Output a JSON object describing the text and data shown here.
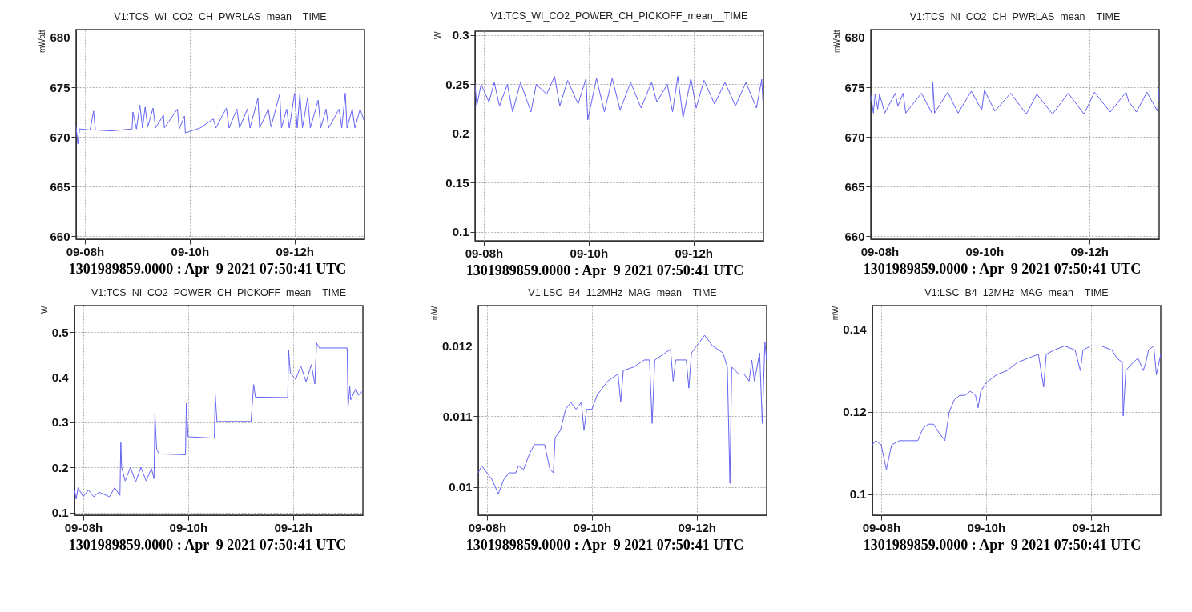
{
  "chart_data": [
    {
      "type": "line",
      "title": "V1:TCS_WI_CO2_CH_PWRLAS_mean__TIME",
      "ylabel": "mWatt",
      "xlim": [
        "2021-04-09T07:50",
        "2021-04-09T13:20"
      ],
      "xticks": [
        {
          "value": "2021-04-09T08:00",
          "label": "09-08h"
        },
        {
          "value": "2021-04-09T10:00",
          "label": "09-10h"
        },
        {
          "value": "2021-04-09T12:00",
          "label": "09-12h"
        }
      ],
      "ylim": [
        659.7,
        680.8
      ],
      "yticks": [
        660,
        665,
        670,
        675,
        680
      ],
      "grid": true,
      "annotations": [
        "1301989859.0000 : Apr  9 2021 07:50:41 UTC"
      ],
      "x": [
        "2021-04-09T07:50",
        "2021-04-09T07:52",
        "2021-04-09T07:54",
        "2021-04-09T08:06",
        "2021-04-09T08:10",
        "2021-04-09T08:12",
        "2021-04-09T08:30",
        "2021-04-09T08:54",
        "2021-04-09T08:55",
        "2021-04-09T08:59",
        "2021-04-09T09:03",
        "2021-04-09T09:06",
        "2021-04-09T09:09",
        "2021-04-09T09:12",
        "2021-04-09T09:18",
        "2021-04-09T09:21",
        "2021-04-09T09:30",
        "2021-04-09T09:31",
        "2021-04-09T09:46",
        "2021-04-09T09:48",
        "2021-04-09T09:54",
        "2021-04-09T09:55",
        "2021-04-09T10:12",
        "2021-04-09T10:27",
        "2021-04-09T10:30",
        "2021-04-09T10:42",
        "2021-04-09T10:45",
        "2021-04-09T10:54",
        "2021-04-09T10:57",
        "2021-04-09T11:06",
        "2021-04-09T11:09",
        "2021-04-09T11:18",
        "2021-04-09T11:20",
        "2021-04-09T11:30",
        "2021-04-09T11:33",
        "2021-04-09T11:43",
        "2021-04-09T11:45",
        "2021-04-09T11:51",
        "2021-04-09T11:54",
        "2021-04-09T12:00",
        "2021-04-09T12:03",
        "2021-04-09T12:06",
        "2021-04-09T12:09",
        "2021-04-09T12:15",
        "2021-04-09T12:18",
        "2021-04-09T12:27",
        "2021-04-09T12:30",
        "2021-04-09T12:36",
        "2021-04-09T12:39",
        "2021-04-09T12:51",
        "2021-04-09T12:54",
        "2021-04-09T12:58",
        "2021-04-09T13:00",
        "2021-04-09T13:06",
        "2021-04-09T13:09",
        "2021-04-09T13:15",
        "2021-04-09T13:20"
      ],
      "series": [
        {
          "color": "#6363f5",
          "values": [
            671,
            669.3,
            670.8,
            670.7,
            672.6,
            670.7,
            670.6,
            670.8,
            672.5,
            670.8,
            673.2,
            670.9,
            673,
            671,
            672.9,
            670.9,
            672.2,
            670.9,
            672.8,
            670.8,
            672.1,
            670.4,
            670.9,
            671.8,
            670.9,
            672.9,
            670.9,
            672.8,
            670.9,
            672.8,
            670.9,
            673.9,
            670.9,
            672.8,
            671,
            674.3,
            670.9,
            672.8,
            670.9,
            674.4,
            670.9,
            674.3,
            670.9,
            674,
            670.9,
            673.7,
            670.9,
            672.8,
            670.9,
            672.8,
            670.9,
            674.4,
            670.9,
            672.8,
            670.9,
            672.8,
            671.5
          ]
        }
      ]
    },
    {
      "type": "line",
      "title": "V1:TCS_WI_CO2_POWER_CH_PICKOFF_mean__TIME",
      "ylabel": "W",
      "xlim": [
        "2021-04-09T07:50",
        "2021-04-09T13:20"
      ],
      "xticks": [
        {
          "value": "2021-04-09T08:00",
          "label": "09-08h"
        },
        {
          "value": "2021-04-09T10:00",
          "label": "09-10h"
        },
        {
          "value": "2021-04-09T12:00",
          "label": "09-12h"
        }
      ],
      "ylim": [
        0.091,
        0.304
      ],
      "yticks": [
        0.1,
        0.15,
        0.2,
        0.25,
        0.3
      ],
      "grid": true,
      "annotations": [
        "1301989859.0000 : Apr  9 2021 07:50:41 UTC"
      ],
      "x": [
        "2021-04-09T07:50",
        "2021-04-09T07:52",
        "2021-04-09T07:57",
        "2021-04-09T08:06",
        "2021-04-09T08:12",
        "2021-04-09T08:18",
        "2021-04-09T08:27",
        "2021-04-09T08:33",
        "2021-04-09T08:42",
        "2021-04-09T08:54",
        "2021-04-09T09:00",
        "2021-04-09T09:12",
        "2021-04-09T09:21",
        "2021-04-09T09:27",
        "2021-04-09T09:36",
        "2021-04-09T09:48",
        "2021-04-09T09:57",
        "2021-04-09T09:59",
        "2021-04-09T10:09",
        "2021-04-09T10:18",
        "2021-04-09T10:27",
        "2021-04-09T10:36",
        "2021-04-09T10:48",
        "2021-04-09T11:00",
        "2021-04-09T11:12",
        "2021-04-09T11:18",
        "2021-04-09T11:30",
        "2021-04-09T11:36",
        "2021-04-09T11:42",
        "2021-04-09T11:48",
        "2021-04-09T11:57",
        "2021-04-09T12:03",
        "2021-04-09T12:12",
        "2021-04-09T12:24",
        "2021-04-09T12:36",
        "2021-04-09T12:48",
        "2021-04-09T13:00",
        "2021-04-09T13:12",
        "2021-04-09T13:18",
        "2021-04-09T13:20"
      ],
      "series": [
        {
          "color": "#6363f5",
          "values": [
            0.25,
            0.228,
            0.25,
            0.232,
            0.252,
            0.228,
            0.25,
            0.222,
            0.252,
            0.222,
            0.25,
            0.24,
            0.258,
            0.228,
            0.254,
            0.23,
            0.256,
            0.214,
            0.256,
            0.222,
            0.256,
            0.224,
            0.252,
            0.226,
            0.252,
            0.232,
            0.25,
            0.222,
            0.258,
            0.216,
            0.256,
            0.226,
            0.254,
            0.23,
            0.252,
            0.228,
            0.252,
            0.226,
            0.255,
            0.224
          ]
        }
      ]
    },
    {
      "type": "line",
      "title": "V1:TCS_NI_CO2_CH_PWRLAS_mean__TIME",
      "ylabel": "mWatt",
      "xlim": [
        "2021-04-09T07:50",
        "2021-04-09T13:20"
      ],
      "xticks": [
        {
          "value": "2021-04-09T08:00",
          "label": "09-08h"
        },
        {
          "value": "2021-04-09T10:00",
          "label": "09-10h"
        },
        {
          "value": "2021-04-09T12:00",
          "label": "09-12h"
        }
      ],
      "ylim": [
        659.7,
        680.8
      ],
      "yticks": [
        660,
        665,
        670,
        675,
        680
      ],
      "grid": true,
      "annotations": [
        "1301989859.0000 : Apr  9 2021 07:50:41 UTC"
      ],
      "x": [
        "2021-04-09T07:50",
        "2021-04-09T07:53",
        "2021-04-09T07:55",
        "2021-04-09T07:58",
        "2021-04-09T08:00",
        "2021-04-09T08:06",
        "2021-04-09T08:18",
        "2021-04-09T08:21",
        "2021-04-09T08:27",
        "2021-04-09T08:30",
        "2021-04-09T08:48",
        "2021-04-09T09:00",
        "2021-04-09T09:01",
        "2021-04-09T09:03",
        "2021-04-09T09:18",
        "2021-04-09T09:30",
        "2021-04-09T09:45",
        "2021-04-09T09:57",
        "2021-04-09T10:00",
        "2021-04-09T10:12",
        "2021-04-09T10:30",
        "2021-04-09T10:36",
        "2021-04-09T10:48",
        "2021-04-09T11:00",
        "2021-04-09T11:18",
        "2021-04-09T11:36",
        "2021-04-09T11:54",
        "2021-04-09T12:06",
        "2021-04-09T12:24",
        "2021-04-09T12:42",
        "2021-04-09T12:45",
        "2021-04-09T12:54",
        "2021-04-09T13:06",
        "2021-04-09T13:18",
        "2021-04-09T13:20"
      ],
      "series": [
        {
          "color": "#6363f5",
          "values": [
            674.2,
            672.4,
            674.3,
            672.8,
            674.3,
            672.4,
            674.4,
            673.1,
            674.4,
            672.4,
            674.4,
            672.4,
            675.5,
            672.4,
            674.5,
            672.4,
            674.6,
            672.7,
            674.7,
            672.6,
            674.4,
            673.7,
            672.3,
            674.3,
            672.3,
            674.4,
            672.3,
            674.5,
            672.5,
            674.5,
            673.6,
            672.5,
            674.5,
            672.6,
            674.8
          ]
        }
      ]
    },
    {
      "type": "line",
      "title": "V1:TCS_NI_CO2_POWER_CH_PICKOFF_mean__TIME",
      "ylabel": "W",
      "xlim": [
        "2021-04-09T07:50",
        "2021-04-09T13:20"
      ],
      "xticks": [
        {
          "value": "2021-04-09T08:00",
          "label": "09-08h"
        },
        {
          "value": "2021-04-09T10:00",
          "label": "09-10h"
        },
        {
          "value": "2021-04-09T12:00",
          "label": "09-12h"
        }
      ],
      "ylim": [
        0.094,
        0.559
      ],
      "yticks": [
        0.1,
        0.2,
        0.3,
        0.4,
        0.5
      ],
      "grid": true,
      "annotations": [
        "1301989859.0000 : Apr  9 2021 07:50:41 UTC"
      ],
      "x": [
        "2021-04-09T07:50",
        "2021-04-09T07:52",
        "2021-04-09T07:54",
        "2021-04-09T08:00",
        "2021-04-09T08:06",
        "2021-04-09T08:12",
        "2021-04-09T08:18",
        "2021-04-09T08:30",
        "2021-04-09T08:36",
        "2021-04-09T08:42",
        "2021-04-09T08:43",
        "2021-04-09T08:44",
        "2021-04-09T08:48",
        "2021-04-09T08:54",
        "2021-04-09T09:00",
        "2021-04-09T09:06",
        "2021-04-09T09:12",
        "2021-04-09T09:18",
        "2021-04-09T09:21",
        "2021-04-09T09:22",
        "2021-04-09T09:24",
        "2021-04-09T09:27",
        "2021-04-09T09:57",
        "2021-04-09T09:58",
        "2021-04-09T10:00",
        "2021-04-09T10:30",
        "2021-04-09T10:31",
        "2021-04-09T10:33",
        "2021-04-09T11:12",
        "2021-04-09T11:15",
        "2021-04-09T11:17",
        "2021-04-09T11:54",
        "2021-04-09T11:55",
        "2021-04-09T11:57",
        "2021-04-09T12:03",
        "2021-04-09T12:09",
        "2021-04-09T12:15",
        "2021-04-09T12:21",
        "2021-04-09T12:25",
        "2021-04-09T12:27",
        "2021-04-09T12:30",
        "2021-04-09T13:02",
        "2021-04-09T13:03",
        "2021-04-09T13:05",
        "2021-04-09T13:06",
        "2021-04-09T13:12",
        "2021-04-09T13:15",
        "2021-04-09T13:20"
      ],
      "series": [
        {
          "color": "#6363f5",
          "values": [
            0.15,
            0.13,
            0.155,
            0.135,
            0.15,
            0.135,
            0.145,
            0.135,
            0.155,
            0.138,
            0.255,
            0.2,
            0.17,
            0.2,
            0.168,
            0.2,
            0.17,
            0.198,
            0.175,
            0.318,
            0.24,
            0.23,
            0.228,
            0.342,
            0.268,
            0.265,
            0.362,
            0.302,
            0.302,
            0.384,
            0.356,
            0.355,
            0.46,
            0.41,
            0.395,
            0.425,
            0.39,
            0.428,
            0.385,
            0.476,
            0.465,
            0.465,
            0.332,
            0.38,
            0.35,
            0.375,
            0.36,
            0.37
          ]
        }
      ]
    },
    {
      "type": "line",
      "title": "V1:LSC_B4_112MHz_MAG_mean__TIME",
      "ylabel": "mW",
      "xlim": [
        "2021-04-09T07:50",
        "2021-04-09T13:20"
      ],
      "xticks": [
        {
          "value": "2021-04-09T08:00",
          "label": "09-08h"
        },
        {
          "value": "2021-04-09T10:00",
          "label": "09-10h"
        },
        {
          "value": "2021-04-09T12:00",
          "label": "09-12h"
        }
      ],
      "ylim": [
        0.0096,
        0.01257
      ],
      "yticks": [
        0.01,
        0.011,
        0.012
      ],
      "grid": true,
      "annotations": [
        "1301989859.0000 : Apr  9 2021 07:50:41 UTC"
      ],
      "x": [
        "2021-04-09T07:50",
        "2021-04-09T07:54",
        "2021-04-09T08:00",
        "2021-04-09T08:06",
        "2021-04-09T08:13",
        "2021-04-09T08:19",
        "2021-04-09T08:25",
        "2021-04-09T08:33",
        "2021-04-09T08:36",
        "2021-04-09T08:42",
        "2021-04-09T08:48",
        "2021-04-09T08:54",
        "2021-04-09T09:00",
        "2021-04-09T09:06",
        "2021-04-09T09:12",
        "2021-04-09T09:16",
        "2021-04-09T09:18",
        "2021-04-09T09:24",
        "2021-04-09T09:30",
        "2021-04-09T09:36",
        "2021-04-09T09:42",
        "2021-04-09T09:48",
        "2021-04-09T09:51",
        "2021-04-09T09:54",
        "2021-04-09T10:00",
        "2021-04-09T10:06",
        "2021-04-09T10:12",
        "2021-04-09T10:18",
        "2021-04-09T10:24",
        "2021-04-09T10:30",
        "2021-04-09T10:33",
        "2021-04-09T10:36",
        "2021-04-09T10:48",
        "2021-04-09T11:00",
        "2021-04-09T11:06",
        "2021-04-09T11:09",
        "2021-04-09T11:12",
        "2021-04-09T11:24",
        "2021-04-09T11:30",
        "2021-04-09T11:33",
        "2021-04-09T11:36",
        "2021-04-09T11:48",
        "2021-04-09T11:51",
        "2021-04-09T11:54",
        "2021-04-09T12:00",
        "2021-04-09T12:09",
        "2021-04-09T12:18",
        "2021-04-09T12:30",
        "2021-04-09T12:35",
        "2021-04-09T12:38",
        "2021-04-09T12:40",
        "2021-04-09T12:48",
        "2021-04-09T12:54",
        "2021-04-09T13:00",
        "2021-04-09T13:03",
        "2021-04-09T13:06",
        "2021-04-09T13:12",
        "2021-04-09T13:15",
        "2021-04-09T13:18",
        "2021-04-09T13:20"
      ],
      "series": [
        {
          "color": "#6363f5",
          "values": [
            0.0102,
            0.0103,
            0.0102,
            0.0101,
            0.0099,
            0.0101,
            0.0102,
            0.0102,
            0.0103,
            0.01025,
            0.01045,
            0.0106,
            0.0106,
            0.0106,
            0.01025,
            0.0102,
            0.0107,
            0.0108,
            0.0111,
            0.0112,
            0.0111,
            0.0112,
            0.0108,
            0.0111,
            0.0111,
            0.0113,
            0.0114,
            0.0115,
            0.01155,
            0.0116,
            0.0112,
            0.01165,
            0.0117,
            0.0118,
            0.0118,
            0.0109,
            0.0118,
            0.0119,
            0.01195,
            0.0115,
            0.0118,
            0.0118,
            0.0114,
            0.0119,
            0.012,
            0.01215,
            0.012,
            0.0119,
            0.0117,
            0.01005,
            0.0117,
            0.0116,
            0.0116,
            0.0115,
            0.0118,
            0.0115,
            0.0119,
            0.0109,
            0.01205,
            0.0118
          ]
        }
      ]
    },
    {
      "type": "line",
      "title": "V1:LSC_B4_12MHz_MAG_mean__TIME",
      "ylabel": "mW",
      "xlim": [
        "2021-04-09T07:50",
        "2021-04-09T13:20"
      ],
      "xticks": [
        {
          "value": "2021-04-09T08:00",
          "label": "09-08h"
        },
        {
          "value": "2021-04-09T10:00",
          "label": "09-10h"
        },
        {
          "value": "2021-04-09T12:00",
          "label": "09-12h"
        }
      ],
      "ylim": [
        0.0949,
        0.1458
      ],
      "yticks": [
        0.1,
        0.12,
        0.14
      ],
      "grid": true,
      "annotations": [
        "1301989859.0000 : Apr  9 2021 07:50:41 UTC"
      ],
      "x": [
        "2021-04-09T07:50",
        "2021-04-09T07:54",
        "2021-04-09T08:00",
        "2021-04-09T08:06",
        "2021-04-09T08:12",
        "2021-04-09T08:21",
        "2021-04-09T08:30",
        "2021-04-09T08:33",
        "2021-04-09T08:42",
        "2021-04-09T08:48",
        "2021-04-09T08:54",
        "2021-04-09T09:00",
        "2021-04-09T09:06",
        "2021-04-09T09:13",
        "2021-04-09T09:18",
        "2021-04-09T09:24",
        "2021-04-09T09:30",
        "2021-04-09T09:36",
        "2021-04-09T09:42",
        "2021-04-09T09:48",
        "2021-04-09T09:51",
        "2021-04-09T09:54",
        "2021-04-09T10:00",
        "2021-04-09T10:06",
        "2021-04-09T10:12",
        "2021-04-09T10:24",
        "2021-04-09T10:36",
        "2021-04-09T10:48",
        "2021-04-09T11:00",
        "2021-04-09T11:06",
        "2021-04-09T11:09",
        "2021-04-09T11:18",
        "2021-04-09T11:30",
        "2021-04-09T11:42",
        "2021-04-09T11:48",
        "2021-04-09T11:51",
        "2021-04-09T12:00",
        "2021-04-09T12:12",
        "2021-04-09T12:24",
        "2021-04-09T12:30",
        "2021-04-09T12:36",
        "2021-04-09T12:37",
        "2021-04-09T12:40",
        "2021-04-09T12:48",
        "2021-04-09T12:54",
        "2021-04-09T13:00",
        "2021-04-09T13:03",
        "2021-04-09T13:06",
        "2021-04-09T13:12",
        "2021-04-09T13:15",
        "2021-04-09T13:20"
      ],
      "series": [
        {
          "color": "#6363f5",
          "values": [
            0.112,
            0.113,
            0.112,
            0.106,
            0.112,
            0.113,
            0.113,
            0.113,
            0.113,
            0.116,
            0.117,
            0.117,
            0.115,
            0.113,
            0.12,
            0.123,
            0.124,
            0.124,
            0.125,
            0.124,
            0.121,
            0.125,
            0.127,
            0.128,
            0.129,
            0.13,
            0.132,
            0.133,
            0.134,
            0.126,
            0.134,
            0.135,
            0.136,
            0.135,
            0.13,
            0.135,
            0.136,
            0.136,
            0.135,
            0.133,
            0.132,
            0.119,
            0.13,
            0.132,
            0.133,
            0.13,
            0.132,
            0.135,
            0.136,
            0.129,
            0.134
          ]
        }
      ]
    }
  ]
}
